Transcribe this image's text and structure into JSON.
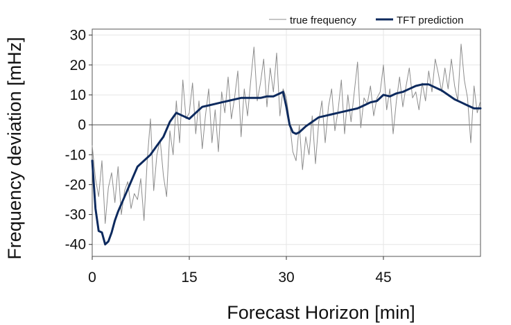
{
  "chart_data": {
    "type": "line",
    "xlabel": "Forecast Horizon [min]",
    "ylabel": "Frequency deviation [mHz]",
    "xlim": [
      0,
      60
    ],
    "ylim": [
      -44,
      32
    ],
    "xticks": [
      0,
      15,
      30,
      45
    ],
    "yticks": [
      30,
      20,
      10,
      0,
      -10,
      -20,
      -30,
      -40
    ],
    "grid": true,
    "legend_position": "top-right",
    "series": [
      {
        "name": "true frequency",
        "color": "#8c8c8c",
        "x": [
          0,
          0.5,
          1,
          1.5,
          2,
          2.5,
          3,
          3.5,
          4,
          4.5,
          5,
          5.5,
          6,
          6.5,
          7,
          7.5,
          8,
          8.5,
          9,
          9.5,
          10,
          10.5,
          11,
          11.5,
          12,
          12.5,
          13,
          13.5,
          14,
          14.5,
          15,
          15.5,
          16,
          16.5,
          17,
          17.5,
          18,
          18.5,
          19,
          19.5,
          20,
          20.5,
          21,
          21.5,
          22,
          22.5,
          23,
          23.5,
          24,
          24.5,
          25,
          25.5,
          26,
          26.5,
          27,
          27.5,
          28,
          28.5,
          29,
          29.5,
          30,
          30.5,
          31,
          31.5,
          32,
          32.5,
          33,
          33.5,
          34,
          34.5,
          35,
          35.5,
          36,
          36.5,
          37,
          37.5,
          38,
          38.5,
          39,
          39.5,
          40,
          40.5,
          41,
          41.5,
          42,
          42.5,
          43,
          43.5,
          44,
          44.5,
          45,
          45.5,
          46,
          46.5,
          47,
          47.5,
          48,
          48.5,
          49,
          49.5,
          50,
          50.5,
          51,
          51.5,
          52,
          52.5,
          53,
          53.5,
          54,
          54.5,
          55,
          55.5,
          56,
          56.5,
          57,
          57.5,
          58,
          58.5,
          59,
          59.5,
          60
        ],
        "values": [
          -7,
          -18,
          -24,
          -12,
          -33,
          -21,
          -16,
          -26,
          -14,
          -30,
          -22,
          -19,
          -28,
          -23,
          -25,
          -18,
          -32,
          -12,
          2,
          -22,
          -10,
          -5,
          -17,
          -24,
          -2,
          -10,
          8,
          -6,
          15,
          2,
          4,
          14,
          -3,
          8,
          -8,
          3,
          12,
          -6,
          5,
          -9,
          11,
          4,
          16,
          2,
          9,
          18,
          -4,
          12,
          3,
          15,
          26,
          8,
          14,
          22,
          6,
          19,
          11,
          24,
          3,
          12,
          9,
          1,
          -9,
          -12,
          0,
          -15,
          -4,
          -10,
          3,
          -13,
          1,
          8,
          -6,
          6,
          12,
          -2,
          5,
          15,
          -3,
          10,
          1,
          11,
          21,
          -1,
          9,
          7,
          13,
          3,
          9,
          11,
          20,
          5,
          12,
          -3,
          8,
          16,
          6,
          13,
          19,
          9,
          11,
          5,
          14,
          8,
          18,
          11,
          22,
          17,
          11,
          19,
          12,
          22,
          13,
          8,
          27,
          15,
          9,
          -6,
          13,
          4,
          8
        ]
      },
      {
        "name": "TFT prediction",
        "color": "#0d2a5e",
        "x": [
          0,
          0.5,
          1,
          1.5,
          2,
          2.5,
          3,
          3.5,
          4,
          5,
          6,
          7,
          8,
          9,
          10,
          11,
          12,
          13,
          14,
          15,
          16,
          17,
          18,
          19,
          20,
          21,
          22,
          23,
          24,
          25,
          26,
          27,
          28,
          29,
          29.5,
          30,
          30.5,
          31,
          31.5,
          32,
          32.5,
          33,
          34,
          35,
          36,
          37,
          38,
          39,
          40,
          41,
          42,
          43,
          44,
          45,
          46,
          47,
          48,
          49,
          50,
          51,
          52,
          53,
          54,
          55,
          56,
          57,
          58,
          59,
          60
        ],
        "values": [
          -12,
          -28,
          -35.5,
          -36,
          -40,
          -39,
          -36,
          -32,
          -29,
          -24,
          -19,
          -14,
          -12,
          -10,
          -7,
          -4,
          1,
          4,
          3,
          2,
          4,
          6,
          6.5,
          7,
          7.5,
          8,
          8.5,
          9,
          9,
          9,
          9,
          9.5,
          9.5,
          10.5,
          11,
          6,
          0,
          -2.5,
          -3,
          -2.5,
          -1.5,
          -0.5,
          1,
          2.5,
          3,
          3.5,
          4,
          4.5,
          5,
          5.5,
          6.5,
          7.5,
          8,
          10,
          9.5,
          10.5,
          11,
          12,
          13,
          13.5,
          13.5,
          12.5,
          11.5,
          10,
          8.5,
          7.5,
          6.5,
          5.5,
          5.5
        ]
      }
    ]
  }
}
